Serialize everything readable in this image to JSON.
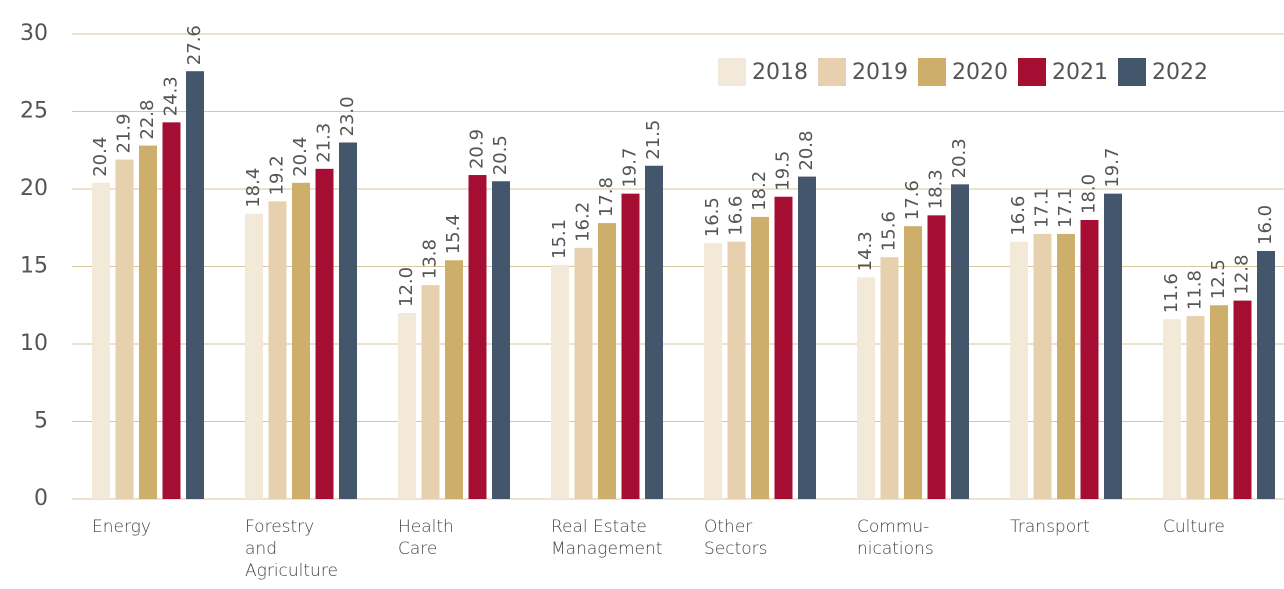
{
  "chart_data": {
    "type": "bar",
    "categories": [
      "Energy",
      "Forestry\nand\nAgriculture",
      "Health\nCare",
      "Real Estate\nManagement",
      "Other\nSectors",
      "Commu-\nnications",
      "Transport",
      "Culture"
    ],
    "series": [
      {
        "name": "2018",
        "color": "#f3e9d8",
        "values": [
          20.4,
          18.4,
          12.0,
          15.1,
          16.5,
          14.3,
          16.6,
          11.6
        ],
        "value_labels": [
          "20.4",
          "18.4",
          "12.0",
          "15.1",
          "16.5",
          "14.3",
          "16.6",
          "11.6"
        ]
      },
      {
        "name": "2019",
        "color": "#e6d0ae",
        "values": [
          21.9,
          19.2,
          13.8,
          16.2,
          16.6,
          15.6,
          17.1,
          11.8
        ],
        "value_labels": [
          "21.9",
          "19.2",
          "13.8",
          "16.2",
          "16.6",
          "15.6",
          "17.1",
          "11.8"
        ]
      },
      {
        "name": "2020",
        "color": "#cdae6a",
        "values": [
          22.8,
          20.4,
          15.4,
          17.8,
          18.2,
          17.6,
          17.1,
          12.5
        ],
        "value_labels": [
          "22.8",
          "20.4",
          "15.4",
          "17.8",
          "18.2",
          "17.6",
          "17.1",
          "12.5"
        ]
      },
      {
        "name": "2021",
        "color": "#a50d33",
        "values": [
          24.3,
          21.3,
          20.9,
          19.7,
          19.5,
          18.3,
          18.0,
          12.8
        ],
        "value_labels": [
          "24.3",
          "21.3",
          "20.9",
          "19.7",
          "19.5",
          "18.3",
          "18.0",
          "12.8"
        ]
      },
      {
        "name": "2022",
        "color": "#44566c",
        "values": [
          27.6,
          23.0,
          20.5,
          21.5,
          20.8,
          20.3,
          19.7,
          16.0
        ],
        "value_labels": [
          "27.6",
          "23.0",
          "20.5",
          "21.5",
          "20.8",
          "20.3",
          "19.7",
          "16.0"
        ]
      }
    ],
    "ylim": [
      0,
      30
    ],
    "yticks": [
      0,
      5,
      10,
      15,
      20,
      25,
      30
    ],
    "grid": true,
    "legend": "top-right"
  }
}
